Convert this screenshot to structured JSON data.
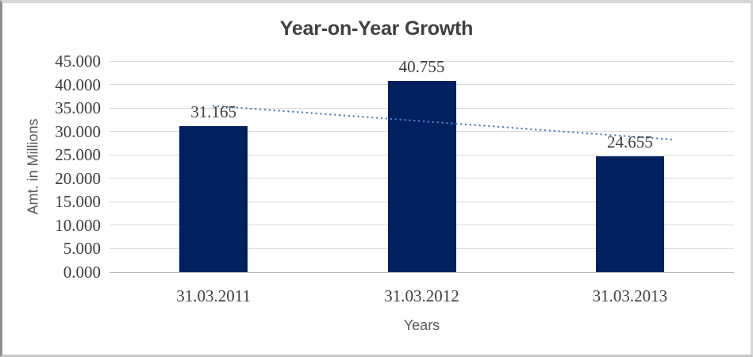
{
  "chart_data": {
    "type": "bar",
    "title": "Year-on-Year Growth",
    "xlabel": "Years",
    "ylabel": "Amt. in Millions",
    "categories": [
      "31.03.2011",
      "31.03.2012",
      "31.03.2013"
    ],
    "values": [
      31.165,
      40.755,
      24.655
    ],
    "data_labels": [
      "31.165",
      "40.755",
      "24.655"
    ],
    "ylim": [
      0,
      45
    ],
    "ytick_step": 5,
    "ytick_labels": [
      "0.000",
      "5.000",
      "10.000",
      "15.000",
      "20.000",
      "25.000",
      "30.000",
      "35.000",
      "40.000",
      "45.000"
    ],
    "grid": true,
    "legend": "none",
    "bar_color": "#002060",
    "gridline_color": "#d9d9d9",
    "axis_line_color": "#b9b9b9",
    "title_color": "#404040",
    "tick_label_color": "#3d3d3d",
    "axis_title_color": "#595959",
    "trendline": {
      "type": "linear",
      "style": "dotted",
      "color": "#4f81bd",
      "forecast_forward_periods": 0.2
    }
  }
}
